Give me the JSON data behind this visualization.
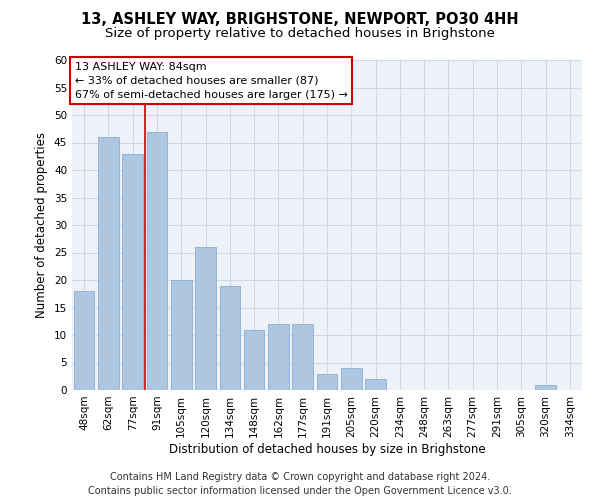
{
  "title": "13, ASHLEY WAY, BRIGHSTONE, NEWPORT, PO30 4HH",
  "subtitle": "Size of property relative to detached houses in Brighstone",
  "xlabel": "Distribution of detached houses by size in Brighstone",
  "ylabel": "Number of detached properties",
  "categories": [
    "48sqm",
    "62sqm",
    "77sqm",
    "91sqm",
    "105sqm",
    "120sqm",
    "134sqm",
    "148sqm",
    "162sqm",
    "177sqm",
    "191sqm",
    "205sqm",
    "220sqm",
    "234sqm",
    "248sqm",
    "263sqm",
    "277sqm",
    "291sqm",
    "305sqm",
    "320sqm",
    "334sqm"
  ],
  "values": [
    18,
    46,
    43,
    47,
    20,
    26,
    19,
    11,
    12,
    12,
    3,
    4,
    2,
    0,
    0,
    0,
    0,
    0,
    0,
    1,
    0
  ],
  "bar_color": "#aec6e0",
  "bar_edge_color": "#8aafd4",
  "grid_color": "#ccd8ea",
  "bg_color": "#eef2f8",
  "vline_color": "#cc0000",
  "vline_x_index": 2.5,
  "annotation_text": "13 ASHLEY WAY: 84sqm\n← 33% of detached houses are smaller (87)\n67% of semi-detached houses are larger (175) →",
  "annotation_box_color": "#ffffff",
  "annotation_box_edge": "#cc0000",
  "footer_line1": "Contains HM Land Registry data © Crown copyright and database right 2024.",
  "footer_line2": "Contains public sector information licensed under the Open Government Licence v3.0.",
  "ylim": [
    0,
    60
  ],
  "yticks": [
    0,
    5,
    10,
    15,
    20,
    25,
    30,
    35,
    40,
    45,
    50,
    55,
    60
  ],
  "title_fontsize": 10.5,
  "subtitle_fontsize": 9.5,
  "xlabel_fontsize": 8.5,
  "ylabel_fontsize": 8.5,
  "tick_fontsize": 7.5,
  "annotation_fontsize": 8,
  "footer_fontsize": 7
}
